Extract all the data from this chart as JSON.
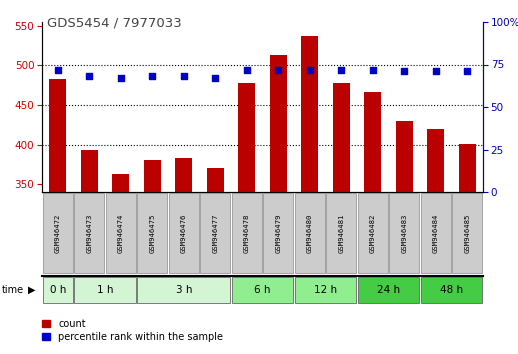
{
  "title": "GDS5454 / 7977033",
  "samples": [
    "GSM946472",
    "GSM946473",
    "GSM946474",
    "GSM946475",
    "GSM946476",
    "GSM946477",
    "GSM946478",
    "GSM946479",
    "GSM946480",
    "GSM946481",
    "GSM946482",
    "GSM946483",
    "GSM946484",
    "GSM946485"
  ],
  "counts": [
    483,
    393,
    363,
    380,
    383,
    370,
    478,
    513,
    537,
    478,
    466,
    430,
    420,
    401
  ],
  "percentile_ranks": [
    72,
    68,
    67,
    68,
    68,
    67,
    72,
    72,
    72,
    72,
    72,
    71,
    71,
    71
  ],
  "time_groups": [
    {
      "label": "0 h",
      "samples": [
        "GSM946472"
      ],
      "color": "#d4f5d4"
    },
    {
      "label": "1 h",
      "samples": [
        "GSM946473",
        "GSM946474"
      ],
      "color": "#d4f5d4"
    },
    {
      "label": "3 h",
      "samples": [
        "GSM946475",
        "GSM946476",
        "GSM946477"
      ],
      "color": "#d4f5d4"
    },
    {
      "label": "6 h",
      "samples": [
        "GSM946478",
        "GSM946479"
      ],
      "color": "#90ee90"
    },
    {
      "label": "12 h",
      "samples": [
        "GSM946480",
        "GSM946481"
      ],
      "color": "#90ee90"
    },
    {
      "label": "24 h",
      "samples": [
        "GSM946482",
        "GSM946483"
      ],
      "color": "#44cc44"
    },
    {
      "label": "48 h",
      "samples": [
        "GSM946484",
        "GSM946485"
      ],
      "color": "#44cc44"
    }
  ],
  "ylim_left": [
    340,
    555
  ],
  "ylim_right": [
    0,
    100
  ],
  "yticks_left": [
    350,
    400,
    450,
    500,
    550
  ],
  "yticks_right": [
    0,
    25,
    50,
    75,
    100
  ],
  "bar_color": "#bb0000",
  "dot_color": "#0000cc",
  "bar_bottom": 340,
  "title_color": "#444444",
  "axis_color_left": "#cc0000",
  "axis_color_right": "#0000bb",
  "sample_box_color": "#cccccc",
  "grid_color": "#000000",
  "time_label": "time"
}
